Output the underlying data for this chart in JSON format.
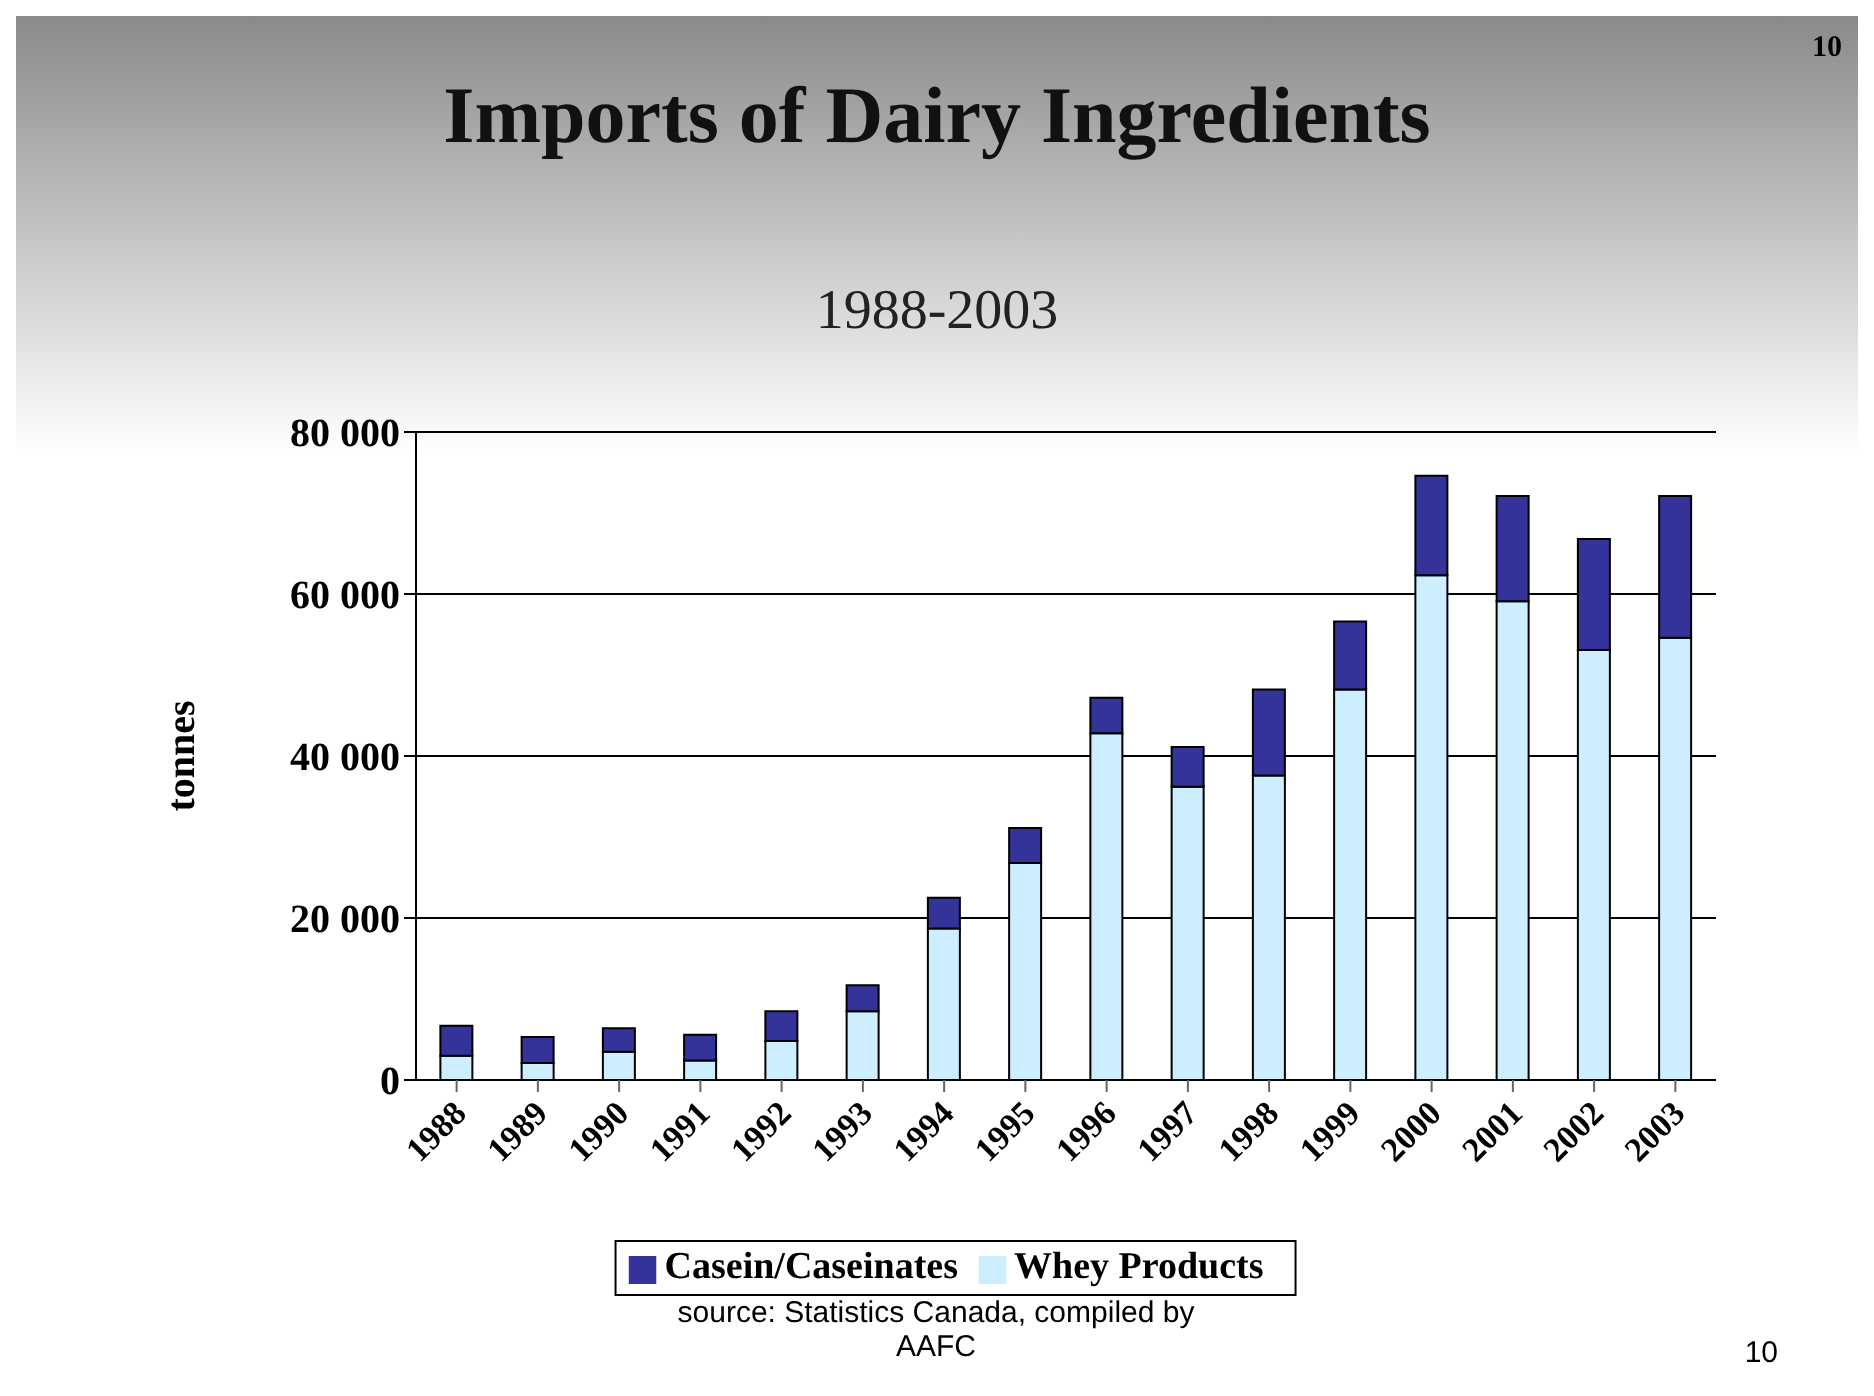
{
  "chart_data": {
    "type": "bar",
    "title": "Imports of Dairy Ingredients",
    "subtitle": "1988-2003",
    "ylabel": "tonnes",
    "categories": [
      "1988",
      "1989",
      "1990",
      "1991",
      "1992",
      "1993",
      "1994",
      "1995",
      "1996",
      "1997",
      "1998",
      "1999",
      "2000",
      "2001",
      "2002",
      "2003"
    ],
    "stacked": true,
    "series": [
      {
        "name": "Whey Products",
        "color": "#cceeff",
        "values": [
          3000,
          2100,
          3500,
          2400,
          4800,
          8500,
          18700,
          26800,
          42800,
          36200,
          37600,
          48200,
          62300,
          59100,
          53100,
          54600
        ]
      },
      {
        "name": "Casein/Caseinates",
        "color": "#333399",
        "values": [
          3700,
          3200,
          2900,
          3200,
          3700,
          3200,
          3800,
          4300,
          4400,
          4900,
          10600,
          8400,
          12300,
          13000,
          13700,
          17500
        ]
      }
    ],
    "ylim": [
      0,
      80000
    ],
    "yticks": [
      0,
      {
        "value": 20000,
        "label": "20 000"
      },
      {
        "value": 40000,
        "label": "40 000"
      },
      {
        "value": 60000,
        "label": "60 000"
      },
      {
        "value": 80000,
        "label": "80 000"
      }
    ],
    "grid": "y",
    "legend": "bottom",
    "annotations": [
      "10",
      "source: Statistics Canada, compiled by AAFC",
      "10"
    ]
  }
}
